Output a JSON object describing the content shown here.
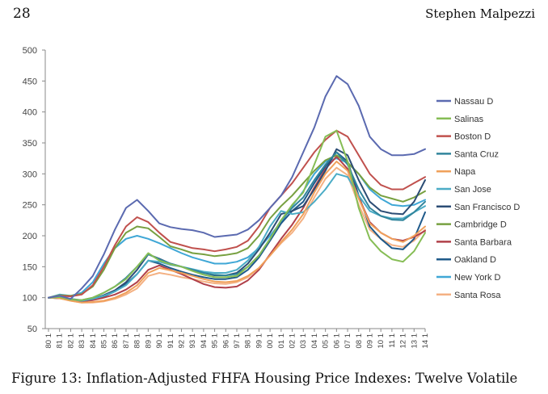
{
  "header": {
    "page_number": "28",
    "author": "Stephen Malpezzi"
  },
  "caption": "Figure 13: Inflation-Adjusted FHFA Housing Price Indexes: Twelve Volatile",
  "chart_data": {
    "type": "line",
    "title": "",
    "xlabel": "",
    "ylabel": "",
    "ylim": [
      50,
      500
    ],
    "yticks": [
      500,
      450,
      400,
      350,
      300,
      250,
      200,
      150,
      100,
      50
    ],
    "grid": false,
    "legend_position": "right",
    "x": [
      "80 1",
      "81 1",
      "82 1",
      "83 1",
      "84 1",
      "85 1",
      "86 1",
      "87 1",
      "88 1",
      "89 1",
      "90 1",
      "91 1",
      "92 1",
      "93 1",
      "94 1",
      "95 1",
      "96 1",
      "97 1",
      "98 1",
      "99 1",
      "00 1",
      "01 1",
      "02 1",
      "03 1",
      "04 1",
      "05 1",
      "06 1",
      "07 1",
      "08 1",
      "09 1",
      "10 1",
      "11 1",
      "12 1",
      "13 1",
      "14 1"
    ],
    "series": [
      {
        "name": "Nassau D",
        "color": "#5b6ab0",
        "values": [
          100,
          103,
          98,
          115,
          135,
          170,
          210,
          245,
          258,
          240,
          220,
          214,
          211,
          209,
          205,
          198,
          200,
          202,
          210,
          225,
          245,
          265,
          295,
          335,
          375,
          425,
          458,
          445,
          410,
          360,
          340,
          330,
          330,
          332,
          340
        ]
      },
      {
        "name": "Salinas",
        "color": "#86bd55",
        "values": [
          100,
          101,
          97,
          96,
          100,
          108,
          118,
          130,
          150,
          172,
          160,
          154,
          150,
          143,
          137,
          133,
          133,
          135,
          150,
          168,
          195,
          225,
          250,
          270,
          315,
          360,
          370,
          320,
          245,
          195,
          175,
          162,
          158,
          175,
          205
        ]
      },
      {
        "name": "Boston D",
        "color": "#c0504d",
        "values": [
          100,
          103,
          102,
          105,
          120,
          150,
          185,
          215,
          230,
          222,
          205,
          190,
          185,
          180,
          178,
          175,
          178,
          182,
          192,
          215,
          245,
          265,
          285,
          310,
          335,
          355,
          370,
          360,
          330,
          300,
          282,
          275,
          275,
          285,
          295
        ]
      },
      {
        "name": "Santa Cruz",
        "color": "#31859c",
        "values": [
          100,
          101,
          98,
          96,
          100,
          108,
          118,
          132,
          150,
          170,
          162,
          155,
          150,
          145,
          140,
          137,
          136,
          138,
          150,
          168,
          195,
          225,
          245,
          262,
          290,
          315,
          335,
          315,
          275,
          245,
          232,
          226,
          225,
          238,
          255
        ]
      },
      {
        "name": "Napa",
        "color": "#f0a05a",
        "values": [
          100,
          99,
          95,
          92,
          93,
          95,
          100,
          108,
          120,
          140,
          148,
          144,
          140,
          135,
          130,
          126,
          125,
          127,
          135,
          148,
          168,
          190,
          210,
          235,
          270,
          300,
          320,
          305,
          260,
          220,
          205,
          195,
          190,
          200,
          215
        ]
      },
      {
        "name": "San Jose",
        "color": "#4bacc6",
        "values": [
          100,
          100,
          97,
          95,
          98,
          103,
          110,
          120,
          138,
          160,
          158,
          153,
          150,
          146,
          142,
          140,
          140,
          145,
          160,
          182,
          215,
          240,
          235,
          238,
          255,
          275,
          300,
          295,
          265,
          240,
          232,
          228,
          228,
          238,
          248
        ]
      },
      {
        "name": "San Francisco D",
        "color": "#2c4d75",
        "values": [
          100,
          100,
          97,
          95,
          98,
          104,
          112,
          125,
          145,
          170,
          163,
          155,
          150,
          145,
          140,
          136,
          136,
          140,
          155,
          178,
          205,
          235,
          240,
          248,
          275,
          305,
          340,
          330,
          290,
          255,
          240,
          236,
          235,
          255,
          290
        ]
      },
      {
        "name": "Cambridge D",
        "color": "#77a040",
        "values": [
          100,
          104,
          103,
          106,
          118,
          145,
          180,
          205,
          215,
          212,
          198,
          183,
          178,
          172,
          170,
          167,
          169,
          172,
          180,
          200,
          228,
          248,
          265,
          285,
          305,
          322,
          330,
          318,
          300,
          278,
          265,
          260,
          255,
          262,
          272
        ]
      },
      {
        "name": "Santa Barbara",
        "color": "#b0404a",
        "values": [
          100,
          99,
          96,
          94,
          96,
          100,
          105,
          113,
          125,
          145,
          152,
          145,
          138,
          130,
          122,
          117,
          116,
          118,
          128,
          145,
          170,
          195,
          218,
          245,
          278,
          308,
          328,
          308,
          262,
          222,
          205,
          195,
          192,
          198,
          208
        ]
      },
      {
        "name": "Oakland D",
        "color": "#1f5a8a",
        "values": [
          100,
          99,
          96,
          94,
          97,
          102,
          110,
          122,
          138,
          160,
          155,
          148,
          142,
          137,
          133,
          130,
          130,
          133,
          145,
          165,
          192,
          220,
          240,
          255,
          285,
          312,
          335,
          320,
          265,
          215,
          195,
          180,
          178,
          195,
          238
        ]
      },
      {
        "name": "New York D",
        "color": "#3fa7d6",
        "values": [
          100,
          105,
          103,
          108,
          125,
          155,
          180,
          195,
          200,
          195,
          188,
          180,
          172,
          165,
          160,
          155,
          155,
          158,
          165,
          180,
          200,
          222,
          248,
          272,
          300,
          320,
          325,
          318,
          300,
          275,
          260,
          250,
          248,
          250,
          258
        ]
      },
      {
        "name": "Santa Rosa",
        "color": "#f4b183",
        "values": [
          100,
          99,
          95,
          92,
          92,
          94,
          98,
          105,
          115,
          135,
          140,
          137,
          133,
          130,
          126,
          123,
          122,
          125,
          133,
          148,
          168,
          188,
          205,
          228,
          262,
          292,
          310,
          298,
          250,
          210,
          195,
          185,
          182,
          192,
          210
        ]
      }
    ]
  }
}
